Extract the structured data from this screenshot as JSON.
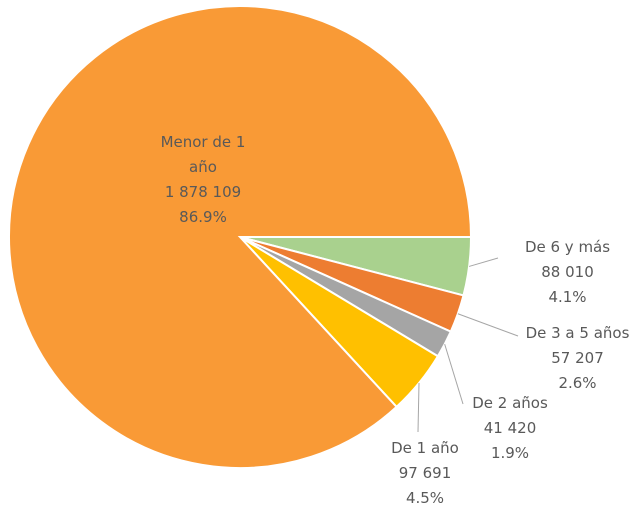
{
  "chart_data": {
    "type": "pie",
    "categories": [
      "De 6 y más",
      "De 3 a 5 años",
      "De 2 años",
      "De 1 año",
      "Menor de 1 año"
    ],
    "values": [
      88010,
      57207,
      41420,
      97691,
      1878109
    ],
    "value_labels": [
      "88 010",
      "57 207",
      "41 420",
      "97 691",
      "1 878 109"
    ],
    "percentages": [
      4.1,
      2.6,
      1.9,
      4.5,
      86.9
    ],
    "percentage_labels": [
      "4.1%",
      "2.6%",
      "1.9%",
      "4.5%",
      "86.9%"
    ],
    "colors": [
      "#a9d18e",
      "#ed7d31",
      "#a5a5a5",
      "#ffc000",
      "#f99a36"
    ]
  }
}
